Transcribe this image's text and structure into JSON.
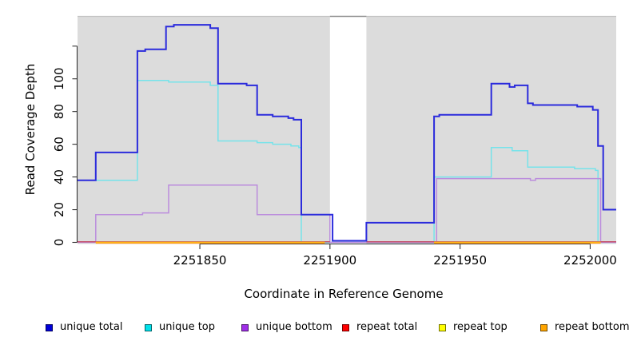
{
  "chart_data": {
    "type": "line",
    "title": "",
    "xlabel": "Coordinate in Reference Genome",
    "ylabel": "Read Coverage Depth",
    "x_range": [
      2251803,
      2252010
    ],
    "y_range": [
      0,
      139
    ],
    "x_ticks": [
      2251850,
      2251900,
      2251950,
      2252000
    ],
    "y_ticks": [
      0,
      20,
      40,
      60,
      80,
      100
    ],
    "y_ticks_unlabeled": [
      120
    ],
    "grid": false,
    "panel_color": "#dcdcdc",
    "gap_region": [
      2251900,
      2251914
    ],
    "panel_regions": [
      [
        2251803,
        2251900
      ],
      [
        2251914,
        2252010
      ]
    ],
    "step_mode": "after",
    "series": [
      {
        "name": "unique total",
        "color": "#2b2bdc",
        "segments": [
          [
            [
              2251803,
              38
            ],
            [
              2251810,
              55
            ],
            [
              2251826,
              117
            ],
            [
              2251829,
              118
            ],
            [
              2251837,
              132
            ],
            [
              2251840,
              133
            ],
            [
              2251854,
              131
            ],
            [
              2251857,
              97
            ],
            [
              2251868,
              96
            ],
            [
              2251872,
              78
            ],
            [
              2251878,
              77
            ],
            [
              2251884,
              76
            ],
            [
              2251886,
              75
            ],
            [
              2251889,
              17
            ],
            [
              2251901,
              1
            ],
            [
              2251914,
              12
            ],
            [
              2251940,
              77
            ],
            [
              2251942,
              78
            ],
            [
              2251962,
              97
            ],
            [
              2251969,
              95
            ],
            [
              2251971,
              96
            ],
            [
              2251976,
              85
            ],
            [
              2251978,
              84
            ],
            [
              2251995,
              83
            ],
            [
              2252001,
              81
            ],
            [
              2252003,
              59
            ],
            [
              2252005,
              20
            ],
            [
              2252010,
              20
            ]
          ]
        ]
      },
      {
        "name": "unique top",
        "color": "#76e3ea",
        "segments": [
          [
            [
              2251803,
              38
            ],
            [
              2251826,
              99
            ],
            [
              2251838,
              98
            ],
            [
              2251854,
              96
            ],
            [
              2251857,
              62
            ],
            [
              2251872,
              61
            ],
            [
              2251878,
              60
            ],
            [
              2251885,
              59
            ],
            [
              2251888,
              58
            ],
            [
              2251889,
              0
            ],
            [
              2251940,
              40
            ],
            [
              2251962,
              58
            ],
            [
              2251970,
              56
            ],
            [
              2251976,
              46
            ],
            [
              2251994,
              45
            ],
            [
              2252002,
              44
            ],
            [
              2252003,
              0
            ],
            [
              2252010,
              0
            ]
          ]
        ]
      },
      {
        "name": "unique bottom",
        "color": "#bb8cdd",
        "segments": [
          [
            [
              2251803,
              0
            ],
            [
              2251810,
              17
            ],
            [
              2251828,
              18
            ],
            [
              2251838,
              35
            ],
            [
              2251872,
              17
            ],
            [
              2251900,
              0
            ],
            [
              2251941,
              39
            ],
            [
              2251977,
              38
            ],
            [
              2251979,
              39
            ],
            [
              2252004,
              0
            ],
            [
              2252010,
              0
            ]
          ]
        ]
      },
      {
        "name": "repeat total",
        "color": "#c5506b",
        "segments": [
          [
            [
              2251803,
              0
            ],
            [
              2251900,
              0
            ]
          ],
          [
            [
              2251914,
              0
            ],
            [
              2252010,
              0
            ]
          ]
        ]
      },
      {
        "name": "repeat top",
        "color": "#ffff00",
        "segments": [
          [
            [
              2251810,
              0
            ],
            [
              2251898,
              0
            ]
          ],
          [
            [
              2251940,
              0
            ],
            [
              2252004,
              0
            ]
          ]
        ]
      },
      {
        "name": "repeat bottom",
        "color": "#ff9e1c",
        "segments": [
          [
            [
              2251810,
              0
            ],
            [
              2251898,
              0
            ]
          ],
          [
            [
              2251940,
              0
            ],
            [
              2252004,
              0
            ]
          ]
        ]
      }
    ]
  },
  "legend": {
    "items": [
      {
        "label": "unique total",
        "color": "#0000d8"
      },
      {
        "label": "unique top",
        "color": "#00e1ea"
      },
      {
        "label": "unique bottom",
        "color": "#a02fe8"
      },
      {
        "label": "repeat total",
        "color": "#ff0000"
      },
      {
        "label": "repeat top",
        "color": "#ffff00"
      },
      {
        "label": "repeat bottom",
        "color": "#ffa500"
      }
    ]
  }
}
